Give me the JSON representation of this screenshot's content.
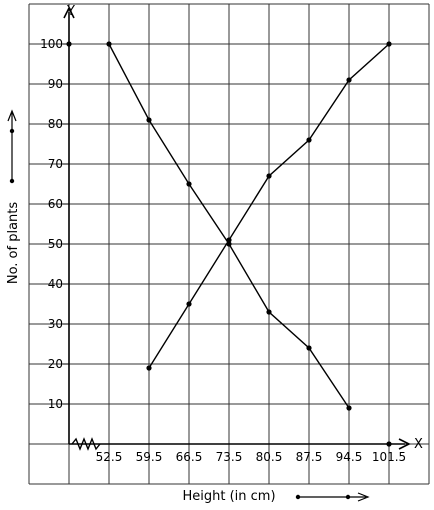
{
  "chart_data": {
    "type": "line",
    "xlabel": "Height (in cm)",
    "ylabel": "No. of plants",
    "x_axis_letter": "X",
    "y_axis_letter": "Y",
    "x_ticks": [
      "52.5",
      "59.5",
      "66.5",
      "73.5",
      "80.5",
      "87.5",
      "94.5",
      "101.5"
    ],
    "y_ticks": [
      "10",
      "20",
      "30",
      "40",
      "50",
      "60",
      "70",
      "80",
      "90",
      "100"
    ],
    "xlim": [
      45.5,
      108.5
    ],
    "ylim": [
      0,
      110
    ],
    "grid": true,
    "series": [
      {
        "x": [
          52.5,
          59.5,
          66.5,
          73.5,
          80.5,
          87.5,
          94.5
        ],
        "y": [
          100,
          81,
          65,
          50,
          33,
          24,
          9
        ]
      },
      {
        "x": [
          59.5,
          66.5,
          73.5,
          80.5,
          87.5,
          94.5,
          101.5
        ],
        "y": [
          19,
          35,
          51,
          67,
          76,
          91,
          100
        ]
      }
    ],
    "axis_points": [
      {
        "x": 45.5,
        "y": 100
      },
      {
        "x": 101.5,
        "y": 0
      }
    ],
    "line_color": "#000000"
  }
}
